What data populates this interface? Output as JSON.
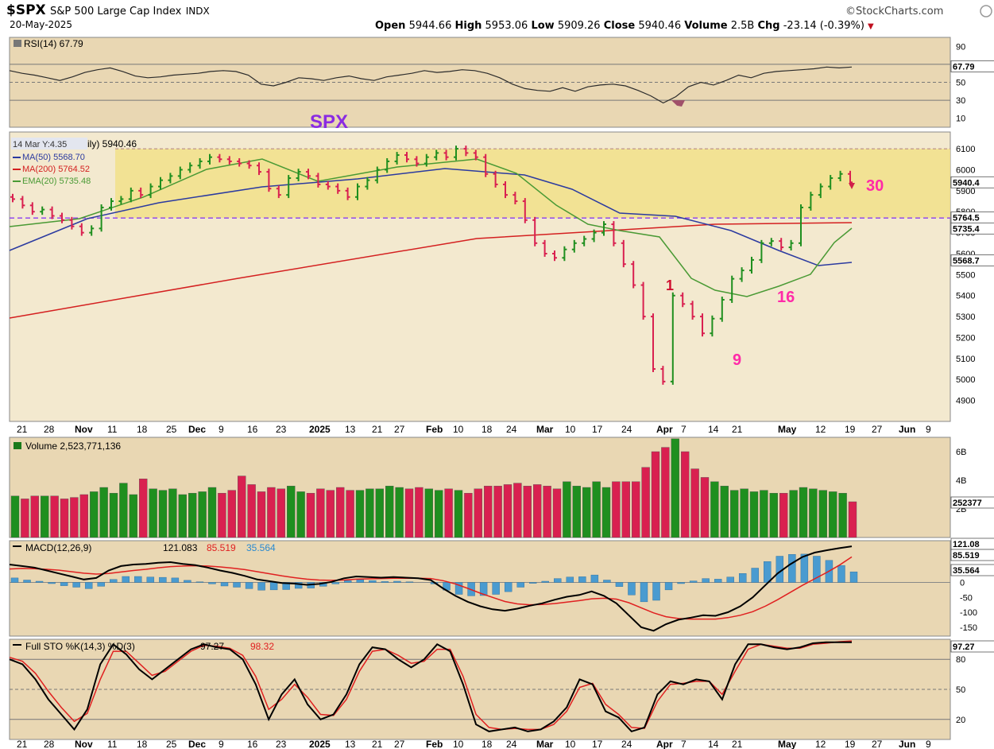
{
  "header": {
    "symbol": "$SPX",
    "name": "S&P 500 Large Cap Index",
    "exchange": "INDX",
    "date": "20-May-2025",
    "brand": "©StockCharts.com",
    "ohlc": {
      "open_label": "Open",
      "open": "5944.66",
      "high_label": "High",
      "high": "5953.06",
      "low_label": "Low",
      "low": "5909.26",
      "close_label": "Close",
      "close": "5940.46",
      "volume_label": "Volume",
      "volume": "2.5B",
      "chg_label": "Chg",
      "chg": "-23.14 (-0.39%)"
    }
  },
  "colors": {
    "panel_bg": "#e9d7b3",
    "price_bg": "#f3e9cf",
    "yellow_band": "#f1e18a",
    "up": "#1f8f1f",
    "down": "#d92050",
    "ma50": "#2b3aa0",
    "ma200": "#d42020",
    "ema20": "#4a9a35",
    "rsi_line": "#2b2b2b",
    "macd_hist": "#4a9bd0",
    "annotation_magenta": "#ff2aa8",
    "annotation_purple": "#8a2be2"
  },
  "chart_data": [
    {
      "type": "line",
      "panel": "RSI",
      "label": "RSI(14) 67.79",
      "last_value_tag": "67.79",
      "y_ticks": [
        "90",
        "70",
        "50",
        "30",
        "10"
      ],
      "ylim": [
        0,
        100
      ],
      "reference_lines": [
        70,
        50,
        30
      ],
      "series": [
        {
          "values": [
            63,
            60,
            58,
            55,
            52,
            56,
            61,
            64,
            66,
            62,
            57,
            55,
            56,
            58,
            59,
            60,
            62,
            63,
            62,
            58,
            48,
            46,
            50,
            55,
            54,
            52,
            55,
            57,
            54,
            52,
            56,
            58,
            60,
            63,
            61,
            62,
            64,
            63,
            60,
            55,
            48,
            43,
            41,
            40,
            44,
            40,
            45,
            47,
            48,
            46,
            41,
            35,
            27,
            34,
            45,
            50,
            47,
            52,
            58,
            55,
            60,
            62,
            63,
            64,
            65,
            67,
            66,
            67
          ]
        }
      ]
    },
    {
      "type": "candlestick",
      "panel": "Price",
      "title_overlay": "SPX",
      "overlay_label_clip": "14 Mar Y:4.35",
      "daily_label_tail": "ily) 5940.46",
      "legend": [
        {
          "name": "MA(50) 5568.70",
          "color": "#2b3aa0"
        },
        {
          "name": "MA(200) 5764.52",
          "color": "#d42020"
        },
        {
          "name": "EMA(20) 5735.48",
          "color": "#4a9a35"
        }
      ],
      "y_ticks": [
        "6100",
        "6000",
        "5900",
        "5800",
        "5700",
        "5600",
        "5500",
        "5400",
        "5300",
        "5200",
        "5100",
        "5000",
        "4900"
      ],
      "ylim": [
        4800,
        6180
      ],
      "last_value_tags": [
        "5940.4",
        "5764.5",
        "5735.4",
        "5568.7"
      ],
      "x_ticks": [
        "21",
        "28",
        "Nov",
        "11",
        "18",
        "25",
        "Dec",
        "9",
        "16",
        "23",
        "2025",
        "13",
        "21",
        "27",
        "Feb",
        "10",
        "18",
        "24",
        "Mar",
        "10",
        "17",
        "24",
        "Apr",
        "7",
        "14",
        "21",
        "May",
        "12",
        "19",
        "27",
        "Jun",
        "9"
      ],
      "x_ticks_bold": [
        "Nov",
        "Dec",
        "2025",
        "Feb",
        "Mar",
        "Apr",
        "May",
        "Jun"
      ],
      "resistance_band": [
        5770,
        6100
      ],
      "support_line": 5770,
      "annotations": [
        "30",
        "16",
        "9",
        "1"
      ],
      "close": [
        5860,
        5830,
        5800,
        5810,
        5780,
        5760,
        5730,
        5700,
        5720,
        5820,
        5850,
        5860,
        5900,
        5880,
        5920,
        5950,
        5970,
        6000,
        6020,
        6040,
        6060,
        6050,
        6040,
        6030,
        6020,
        5990,
        5910,
        5880,
        5960,
        5990,
        5970,
        5930,
        5920,
        5900,
        5870,
        5920,
        5950,
        6000,
        6040,
        6070,
        6050,
        6030,
        6060,
        6080,
        6060,
        6100,
        6080,
        6060,
        5980,
        5930,
        5880,
        5850,
        5760,
        5650,
        5600,
        5580,
        5620,
        5650,
        5670,
        5700,
        5740,
        5650,
        5550,
        5450,
        5300,
        5050,
        4990,
        5400,
        5360,
        5300,
        5220,
        5290,
        5380,
        5480,
        5520,
        5570,
        5650,
        5660,
        5630,
        5650,
        5820,
        5880,
        5920,
        5960,
        5980,
        5940
      ]
    },
    {
      "type": "bar",
      "panel": "Volume",
      "label": "Volume 2,523,771,136",
      "y_ticks": [
        "6B",
        "4B",
        "2B"
      ],
      "last_value_tag": "252377",
      "ylim": [
        0,
        7
      ],
      "values": [
        2.9,
        2.7,
        2.9,
        2.9,
        2.9,
        2.7,
        2.8,
        3.0,
        3.2,
        3.5,
        3.1,
        3.8,
        3.0,
        4.1,
        3.4,
        3.3,
        3.4,
        3.0,
        3.1,
        3.2,
        3.5,
        3.1,
        3.3,
        4.3,
        3.7,
        3.2,
        3.5,
        3.4,
        3.6,
        3.2,
        3.1,
        3.4,
        3.3,
        3.5,
        3.3,
        3.3,
        3.4,
        3.4,
        3.6,
        3.5,
        3.4,
        3.5,
        3.4,
        3.3,
        3.4,
        3.3,
        3.1,
        3.4,
        3.6,
        3.6,
        3.7,
        3.8,
        3.6,
        3.7,
        3.6,
        3.4,
        3.9,
        3.6,
        3.5,
        3.9,
        3.5,
        3.9,
        3.9,
        3.9,
        4.9,
        6.0,
        6.3,
        6.9,
        6.0,
        4.8,
        4.2,
        3.9,
        3.6,
        3.3,
        3.4,
        3.2,
        3.3,
        3.1,
        3.1,
        3.3,
        3.5,
        3.4,
        3.3,
        3.2,
        3.1,
        2.5
      ]
    },
    {
      "type": "line",
      "panel": "MACD",
      "label_prefix": "MACD(12,26,9)",
      "macd_value": "121.083",
      "signal_value": "85.519",
      "hist_value": "35.564",
      "y_ticks": [
        "50",
        "0",
        "-50",
        "-100",
        "-150"
      ],
      "last_value_tags": [
        "121.08",
        "85.519",
        "35.564"
      ],
      "ylim": [
        -180,
        140
      ],
      "series": [
        {
          "name": "MACD",
          "values": [
            60,
            55,
            50,
            40,
            30,
            20,
            10,
            15,
            40,
            55,
            60,
            62,
            66,
            68,
            62,
            58,
            50,
            40,
            32,
            22,
            10,
            4,
            -2,
            -4,
            -8,
            -5,
            2,
            14,
            20,
            18,
            16,
            18,
            16,
            14,
            8,
            -20,
            -45,
            -65,
            -80,
            -90,
            -95,
            -88,
            -78,
            -70,
            -58,
            -48,
            -42,
            -30,
            -45,
            -70,
            -110,
            -150,
            -162,
            -140,
            -125,
            -118,
            -110,
            -112,
            -100,
            -80,
            -50,
            -10,
            30,
            60,
            85,
            100,
            108,
            115,
            121
          ]
        },
        {
          "name": "Signal",
          "values": [
            45,
            47,
            46,
            44,
            41,
            36,
            31,
            28,
            30,
            35,
            40,
            44,
            49,
            53,
            55,
            56,
            55,
            52,
            48,
            43,
            36,
            29,
            22,
            16,
            11,
            8,
            7,
            8,
            11,
            12,
            13,
            14,
            14,
            14,
            13,
            6,
            -5,
            -20,
            -36,
            -50,
            -64,
            -72,
            -75,
            -74,
            -71,
            -66,
            -61,
            -55,
            -53,
            -56,
            -68,
            -85,
            -102,
            -115,
            -121,
            -123,
            -123,
            -123,
            -118,
            -110,
            -98,
            -80,
            -58,
            -34,
            -10,
            12,
            34,
            58,
            85.5
          ]
        },
        {
          "name": "Histogram",
          "values": [
            15,
            8,
            4,
            -4,
            -11,
            -16,
            -21,
            -13,
            10,
            20,
            20,
            18,
            17,
            15,
            7,
            2,
            -5,
            -12,
            -16,
            -21,
            -26,
            -25,
            -24,
            -20,
            -19,
            -13,
            -5,
            6,
            9,
            6,
            3,
            4,
            2,
            0,
            -5,
            -26,
            -40,
            -45,
            -44,
            -40,
            -31,
            -16,
            -3,
            4,
            13,
            18,
            19,
            25,
            8,
            -14,
            -42,
            -65,
            -60,
            -25,
            -4,
            5,
            13,
            11,
            18,
            30,
            48,
            70,
            88,
            94,
            95,
            88,
            74,
            57,
            35.6
          ]
        }
      ]
    },
    {
      "type": "line",
      "panel": "Full STO",
      "label_prefix": "Full STO %K(14,3) %D(3)",
      "k_value": "97.27",
      "d_value": "98.32",
      "y_ticks": [
        "80",
        "50",
        "20"
      ],
      "last_value_tag": "97.27",
      "ylim": [
        0,
        100
      ],
      "series": [
        {
          "name": "%K",
          "values": [
            80,
            75,
            60,
            40,
            25,
            10,
            30,
            75,
            95,
            85,
            70,
            60,
            70,
            80,
            90,
            95,
            92,
            90,
            80,
            55,
            20,
            45,
            60,
            35,
            20,
            25,
            45,
            75,
            92,
            90,
            80,
            72,
            80,
            95,
            88,
            55,
            15,
            8,
            10,
            12,
            8,
            10,
            18,
            32,
            60,
            55,
            28,
            22,
            8,
            12,
            45,
            58,
            55,
            60,
            58,
            40,
            75,
            95,
            95,
            92,
            90,
            92,
            96,
            97,
            97,
            97
          ]
        },
        {
          "name": "%D",
          "values": [
            82,
            78,
            66,
            48,
            32,
            18,
            26,
            60,
            88,
            88,
            76,
            64,
            68,
            78,
            88,
            94,
            93,
            91,
            84,
            63,
            30,
            40,
            55,
            42,
            25,
            24,
            40,
            68,
            88,
            90,
            84,
            76,
            78,
            90,
            90,
            63,
            25,
            12,
            10,
            11,
            10,
            10,
            15,
            28,
            52,
            56,
            35,
            25,
            12,
            11,
            38,
            55,
            56,
            58,
            58,
            45,
            68,
            90,
            95,
            93,
            91,
            91,
            95,
            96,
            97.5,
            98.3
          ]
        }
      ]
    }
  ]
}
